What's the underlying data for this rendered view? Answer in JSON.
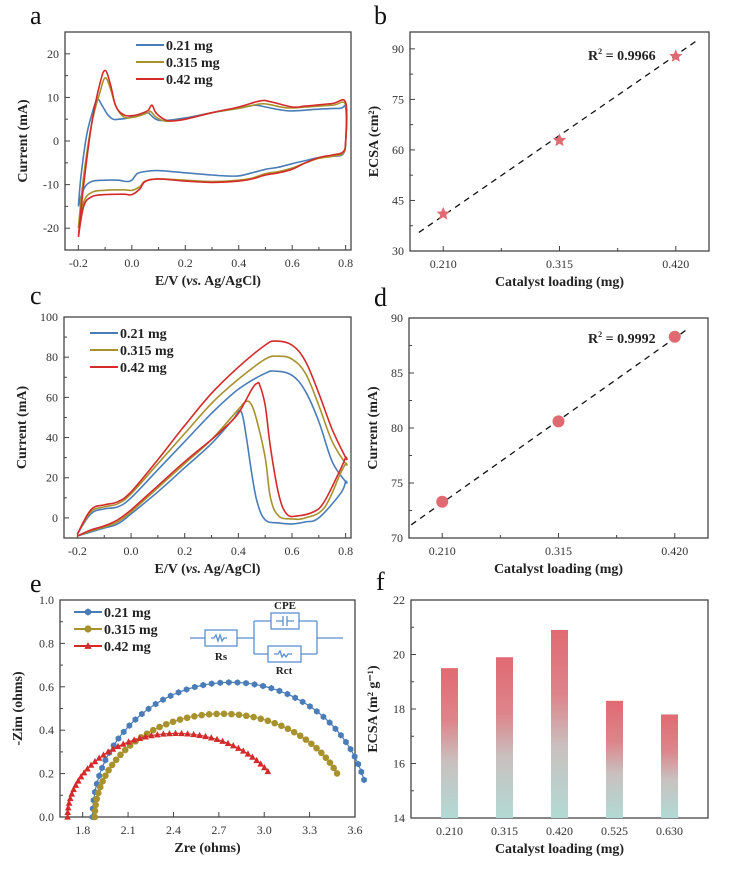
{
  "colors": {
    "blue": "#4a7db8",
    "olive": "#a8922e",
    "red": "#d42a2a",
    "marker_pink": "#e06a72",
    "bar_top": "#e06a72",
    "bar_bottom": "#b2dad4",
    "fit_line": "#111111"
  },
  "chart_data": [
    {
      "id": "a",
      "panel_label": "a",
      "type": "line",
      "title": "",
      "xlabel": "E/V (vs. Ag/AgCl)",
      "xlabel_parts": [
        "E/V (",
        "vs.",
        " Ag/AgCl)"
      ],
      "ylabel": "Current (mA)",
      "xlim": [
        -0.25,
        0.82
      ],
      "ylim": [
        -25,
        25
      ],
      "xticks": [
        -0.2,
        0.0,
        0.2,
        0.4,
        0.6,
        0.8
      ],
      "xtick_labels": [
        "-0.2",
        "0.0",
        "0.2",
        "0.4",
        "0.6",
        "0.8"
      ],
      "yticks": [
        -20,
        -10,
        0,
        10,
        20
      ],
      "ytick_labels": [
        "-20",
        "-10",
        "0",
        "10",
        "20"
      ],
      "legend_position": "top-center",
      "series": [
        {
          "name": "0.21 mg",
          "color_key": "blue",
          "x": [
            -0.2,
            -0.19,
            -0.17,
            -0.15,
            -0.13,
            -0.11,
            -0.09,
            -0.07,
            -0.05,
            -0.02,
            0.0,
            0.03,
            0.06,
            0.07,
            0.09,
            0.12,
            0.2,
            0.3,
            0.4,
            0.46,
            0.5,
            0.55,
            0.6,
            0.7,
            0.78,
            0.8,
            0.8,
            0.79,
            0.75,
            0.7,
            0.65,
            0.6,
            0.55,
            0.5,
            0.45,
            0.4,
            0.35,
            0.3,
            0.2,
            0.1,
            0.05,
            0.02,
            0.0,
            -0.02,
            -0.05,
            -0.1,
            -0.15,
            -0.18,
            -0.2
          ],
          "y": [
            -15,
            -8,
            1,
            6,
            9.5,
            8,
            6,
            5,
            5,
            5.2,
            5.5,
            6,
            6.5,
            6,
            5,
            4.7,
            5.3,
            6.5,
            7.5,
            8.2,
            7.8,
            7.2,
            6.9,
            7.3,
            7.5,
            7.6,
            0,
            -3,
            -3.5,
            -3.8,
            -4.5,
            -5.2,
            -6,
            -6.5,
            -7.3,
            -8,
            -8,
            -7.8,
            -7.3,
            -6.8,
            -7,
            -7.5,
            -9,
            -9.3,
            -9,
            -9,
            -9.3,
            -11,
            -15
          ]
        },
        {
          "name": "0.315 mg",
          "color_key": "olive",
          "x": [
            -0.2,
            -0.18,
            -0.15,
            -0.12,
            -0.1,
            -0.08,
            -0.06,
            -0.03,
            0.0,
            0.03,
            0.06,
            0.07,
            0.09,
            0.12,
            0.15,
            0.2,
            0.3,
            0.4,
            0.48,
            0.52,
            0.58,
            0.65,
            0.75,
            0.8,
            0.8,
            0.79,
            0.75,
            0.7,
            0.65,
            0.6,
            0.55,
            0.5,
            0.45,
            0.4,
            0.3,
            0.2,
            0.1,
            0.05,
            0.03,
            0.0,
            -0.03,
            -0.1,
            -0.15,
            -0.18,
            -0.2
          ],
          "y": [
            -20,
            -8,
            4,
            11,
            14.5,
            12,
            8,
            5.5,
            5.4,
            5.8,
            6.5,
            6.8,
            5.5,
            4.6,
            4.6,
            5,
            6.5,
            7.5,
            8.5,
            8.3,
            7.6,
            7.8,
            8.2,
            8.3,
            0,
            -2.8,
            -3.5,
            -4,
            -5,
            -6.2,
            -7,
            -7.5,
            -8.5,
            -9,
            -9.3,
            -9,
            -8.7,
            -9.2,
            -10.5,
            -11.3,
            -11.2,
            -11.3,
            -11.8,
            -14,
            -20
          ]
        },
        {
          "name": "0.42 mg",
          "color_key": "red",
          "x": [
            -0.2,
            -0.18,
            -0.15,
            -0.12,
            -0.1,
            -0.08,
            -0.06,
            -0.03,
            0.0,
            0.03,
            0.06,
            0.075,
            0.09,
            0.12,
            0.15,
            0.2,
            0.3,
            0.4,
            0.48,
            0.52,
            0.6,
            0.65,
            0.75,
            0.8,
            0.8,
            0.79,
            0.75,
            0.7,
            0.65,
            0.6,
            0.55,
            0.5,
            0.45,
            0.4,
            0.3,
            0.2,
            0.1,
            0.05,
            0.03,
            0.0,
            -0.03,
            -0.1,
            -0.15,
            -0.18,
            -0.2
          ],
          "y": [
            -22,
            -10,
            4,
            13,
            16.2,
            13,
            8,
            6,
            5.8,
            6.2,
            7,
            8.2,
            6.5,
            5,
            4.6,
            5,
            6.5,
            7.8,
            9.2,
            9,
            7.8,
            8,
            8.6,
            8.8,
            0,
            -2.5,
            -3.2,
            -3.8,
            -5,
            -6.5,
            -7.3,
            -7.8,
            -8.7,
            -9.2,
            -9.5,
            -9.2,
            -8.7,
            -9.3,
            -11,
            -12.3,
            -12.2,
            -12.3,
            -12.8,
            -15,
            -22
          ]
        }
      ]
    },
    {
      "id": "b",
      "panel_label": "b",
      "type": "scatter",
      "title": "",
      "xlabel": "Catalyst loading (mg)",
      "ylabel": "ECSA (cm²)",
      "xlim": [
        0.18,
        0.45
      ],
      "ylim": [
        30,
        95
      ],
      "xticks": [
        0.21,
        0.315,
        0.42
      ],
      "xtick_labels": [
        "0.210",
        "0.315",
        "0.420"
      ],
      "minor_xticks": [
        0.2625,
        0.3675
      ],
      "yticks": [
        30,
        45,
        60,
        75,
        90
      ],
      "ytick_labels": [
        "30",
        "45",
        "60",
        "75",
        "90"
      ],
      "marker": "star",
      "x": [
        0.21,
        0.315,
        0.42
      ],
      "y": [
        41,
        62.8,
        87.8
      ],
      "fit": {
        "x": [
          0.188,
          0.438
        ],
        "y": [
          35.5,
          92.2
        ],
        "style": "dashed"
      },
      "annotation": "R² = 0.9966",
      "annotation_parts": [
        "R",
        "2",
        " = 0.9966"
      ]
    },
    {
      "id": "c",
      "panel_label": "c",
      "type": "line",
      "title": "",
      "xlabel": "E/V (vs. Ag/AgCl)",
      "xlabel_parts": [
        "E/V (",
        "vs.",
        " Ag/AgCl)"
      ],
      "ylabel": "Current (mA)",
      "xlim": [
        -0.25,
        0.82
      ],
      "ylim": [
        -10,
        100
      ],
      "xticks": [
        -0.2,
        0.0,
        0.2,
        0.4,
        0.6,
        0.8
      ],
      "xtick_labels": [
        "-0.2",
        "0.0",
        "0.2",
        "0.4",
        "0.6",
        "0.8"
      ],
      "yticks": [
        0,
        20,
        40,
        60,
        80,
        100
      ],
      "ytick_labels": [
        "0",
        "20",
        "40",
        "60",
        "80",
        "100"
      ],
      "legend_position": "top-left",
      "series": [
        {
          "name": "0.21 mg",
          "color_key": "blue",
          "x": [
            -0.2,
            -0.15,
            -0.1,
            -0.05,
            0.0,
            0.1,
            0.2,
            0.3,
            0.4,
            0.5,
            0.54,
            0.6,
            0.65,
            0.7,
            0.75,
            0.8,
            0.8,
            0.78,
            0.7,
            0.65,
            0.6,
            0.55,
            0.5,
            0.47,
            0.45,
            0.43,
            0.41,
            0.38,
            0.3,
            0.2,
            0.1,
            0.0,
            -0.05,
            -0.1,
            -0.15,
            -0.2
          ],
          "y": [
            -8,
            2,
            4.5,
            5.5,
            10,
            24,
            38,
            52,
            64,
            72,
            73,
            71,
            63,
            48,
            28,
            18,
            18,
            12,
            0,
            -2,
            -3,
            -2.5,
            -1,
            8,
            22,
            40,
            53,
            49,
            37,
            25,
            13,
            2,
            -3,
            -5,
            -7,
            -9
          ]
        },
        {
          "name": "0.315 mg",
          "color_key": "olive",
          "x": [
            -0.2,
            -0.15,
            -0.1,
            -0.05,
            0.0,
            0.1,
            0.2,
            0.3,
            0.4,
            0.5,
            0.55,
            0.6,
            0.65,
            0.7,
            0.75,
            0.8,
            0.8,
            0.78,
            0.72,
            0.65,
            0.6,
            0.55,
            0.52,
            0.5,
            0.47,
            0.45,
            0.43,
            0.4,
            0.3,
            0.2,
            0.1,
            0.0,
            -0.05,
            -0.1,
            -0.15,
            -0.2
          ],
          "y": [
            -8,
            3,
            5.5,
            7,
            12,
            27,
            42,
            57,
            69,
            79,
            80.5,
            79,
            72,
            56,
            38,
            27,
            27,
            22,
            5,
            0,
            -0.5,
            1,
            10,
            30,
            48,
            56,
            58,
            54,
            39,
            27,
            15,
            3,
            -2,
            -4.5,
            -6.5,
            -9
          ]
        },
        {
          "name": "0.42 mg",
          "color_key": "red",
          "x": [
            -0.2,
            -0.15,
            -0.1,
            -0.05,
            0.0,
            0.1,
            0.2,
            0.3,
            0.4,
            0.5,
            0.54,
            0.6,
            0.65,
            0.7,
            0.75,
            0.8,
            0.8,
            0.78,
            0.72,
            0.68,
            0.62,
            0.58,
            0.55,
            0.52,
            0.5,
            0.48,
            0.47,
            0.45,
            0.4,
            0.35,
            0.3,
            0.2,
            0.1,
            0.0,
            -0.05,
            -0.1,
            -0.15,
            -0.2
          ],
          "y": [
            -8,
            4,
            6.5,
            8,
            13,
            29,
            46,
            62,
            75,
            86,
            88,
            86,
            78,
            62,
            44,
            30,
            30,
            24,
            8,
            3,
            1,
            2,
            12,
            35,
            56,
            66,
            67,
            64,
            52,
            45,
            39,
            28,
            16,
            4,
            -1,
            -4,
            -6,
            -9
          ]
        }
      ]
    },
    {
      "id": "d",
      "panel_label": "d",
      "type": "scatter",
      "title": "",
      "xlabel": "Catalyst loading (mg)",
      "ylabel": "Current (mA)",
      "xlim": [
        0.18,
        0.45
      ],
      "ylim": [
        70,
        90
      ],
      "xticks": [
        0.21,
        0.315,
        0.42
      ],
      "xtick_labels": [
        "0.210",
        "0.315",
        "0.420"
      ],
      "minor_xticks": [
        0.2625,
        0.3675
      ],
      "yticks": [
        70,
        75,
        80,
        85,
        90
      ],
      "ytick_labels": [
        "70",
        "75",
        "80",
        "85",
        "90"
      ],
      "marker": "circle",
      "x": [
        0.21,
        0.315,
        0.42
      ],
      "y": [
        73.3,
        80.6,
        88.3
      ],
      "fit": {
        "x": [
          0.182,
          0.433
        ],
        "y": [
          71.2,
          89.1
        ],
        "style": "dashed"
      },
      "annotation": "R² = 0.9992",
      "annotation_parts": [
        "R",
        "2",
        " = 0.9992"
      ]
    },
    {
      "id": "e",
      "panel_label": "e",
      "type": "scatter",
      "title": "",
      "xlabel": "Zre (ohms)",
      "ylabel": "-Zim (ohms)",
      "xlim": [
        1.65,
        3.6
      ],
      "ylim": [
        0,
        1.0
      ],
      "xticks": [
        1.8,
        2.1,
        2.4,
        2.7,
        3.0,
        3.3,
        3.6
      ],
      "xtick_labels": [
        "1.8",
        "2.1",
        "2.4",
        "2.7",
        "3.0",
        "3.3",
        "3.6"
      ],
      "yticks": [
        0,
        0.2,
        0.4,
        0.6,
        0.8,
        1.0
      ],
      "ytick_labels": [
        "0.0",
        "0.2",
        "0.4",
        "0.6",
        "0.8",
        "1.0"
      ],
      "legend_position": "top-left",
      "inset_circuit": {
        "labels": [
          "CPE",
          "Rs",
          "Rct"
        ]
      },
      "series": [
        {
          "name": "0.21 mg",
          "color_key": "blue",
          "marker": "hexagon",
          "center": 2.78,
          "radius": 0.915,
          "yscale": 0.678,
          "theta_end_deg": 16
        },
        {
          "name": "0.315 mg",
          "color_key": "olive",
          "marker": "circle",
          "center": 2.72,
          "radius": 0.84,
          "yscale": 0.566,
          "theta_end_deg": 25
        },
        {
          "name": "0.42 mg",
          "color_key": "red",
          "marker": "triangle",
          "center": 2.42,
          "radius": 0.72,
          "yscale": 0.535,
          "theta_end_deg": 33
        }
      ]
    },
    {
      "id": "f",
      "panel_label": "f",
      "type": "bar",
      "title": "",
      "xlabel": "Catalyst loading (mg)",
      "ylabel": "ECSA (m² g⁻¹)",
      "categories": [
        "0.210",
        "0.315",
        "0.420",
        "0.525",
        "0.630"
      ],
      "values": [
        19.5,
        19.9,
        20.9,
        18.3,
        17.8
      ],
      "ylim": [
        14,
        22
      ],
      "yticks": [
        14,
        16,
        18,
        20,
        22
      ],
      "ytick_labels": [
        "14",
        "16",
        "18",
        "20",
        "22"
      ],
      "fill": "vertical gradient red (top) to mint (bottom)"
    }
  ]
}
